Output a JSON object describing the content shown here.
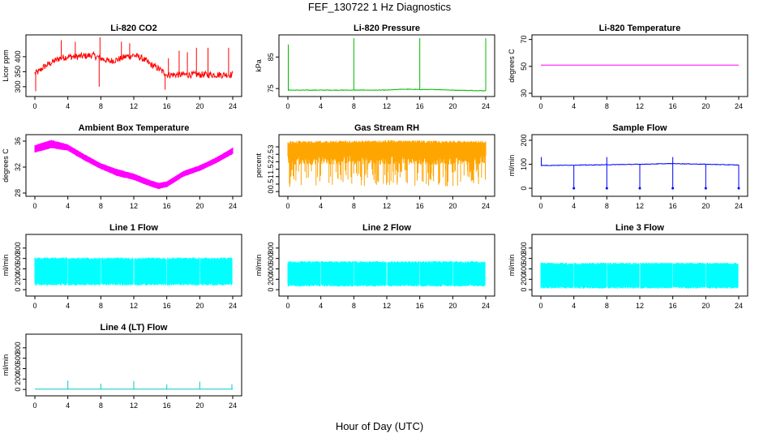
{
  "figure": {
    "title": "FEF_130722  1 Hz Diagnostics",
    "xlabel": "Hour of Day (UTC)"
  },
  "chart_data": [
    {
      "type": "line",
      "title": "Li-820 CO2",
      "ylabel": "Licor ppm",
      "color": "#ff0000",
      "xticks": [
        0,
        4,
        8,
        12,
        16,
        20,
        24
      ],
      "xlim": [
        0,
        24
      ],
      "yticks": [
        300,
        350,
        400
      ],
      "ylim": [
        278,
        462
      ],
      "series": [
        {
          "x": [
            0,
            0.5,
            1,
            2,
            3,
            4,
            5,
            6,
            7,
            8,
            9,
            10,
            11,
            12,
            13,
            14,
            15,
            16,
            17,
            18,
            20,
            22,
            24
          ],
          "y": [
            345,
            350,
            365,
            380,
            395,
            400,
            400,
            402,
            405,
            395,
            385,
            390,
            400,
            405,
            395,
            375,
            360,
            340,
            340,
            340,
            340,
            340,
            340
          ]
        }
      ],
      "spikes": [
        {
          "x": 0.1,
          "y": 285
        },
        {
          "x": 3.2,
          "y": 455
        },
        {
          "x": 4.9,
          "y": 450
        },
        {
          "x": 7.8,
          "y": 300
        },
        {
          "x": 7.9,
          "y": 465
        },
        {
          "x": 10.5,
          "y": 450
        },
        {
          "x": 11.5,
          "y": 445
        },
        {
          "x": 15.8,
          "y": 290
        },
        {
          "x": 16.2,
          "y": 395
        },
        {
          "x": 17.5,
          "y": 420
        },
        {
          "x": 18.5,
          "y": 415
        },
        {
          "x": 19.6,
          "y": 430
        },
        {
          "x": 21,
          "y": 430
        },
        {
          "x": 23.5,
          "y": 430
        }
      ]
    },
    {
      "type": "line",
      "title": "Li-820 Pressure",
      "ylabel": "kPa",
      "color": "#00bb00",
      "xticks": [
        0,
        4,
        8,
        12,
        16,
        20,
        24
      ],
      "xlim": [
        0,
        24
      ],
      "yticks": [
        75,
        85
      ],
      "ylim": [
        73.5,
        91
      ],
      "series": [
        {
          "x": [
            0,
            4,
            8,
            12,
            14,
            16,
            18,
            20,
            22,
            24
          ],
          "y": [
            74.5,
            74.5,
            74.5,
            74.5,
            74.8,
            74.7,
            74.7,
            74.5,
            74.4,
            74.3
          ]
        }
      ],
      "spikes": [
        {
          "x": 0.05,
          "y": 89
        },
        {
          "x": 8,
          "y": 91
        },
        {
          "x": 16,
          "y": 91
        },
        {
          "x": 24,
          "y": 91
        }
      ]
    },
    {
      "type": "line",
      "title": "Li-820 Temperature",
      "ylabel": "degrees C",
      "color": "#ff00ff",
      "xticks": [
        0,
        4,
        8,
        12,
        16,
        20,
        24
      ],
      "xlim": [
        0,
        24
      ],
      "yticks": [
        30,
        50,
        70
      ],
      "ylim": [
        30,
        71
      ],
      "series": [
        {
          "x": [
            0,
            24
          ],
          "y": [
            51,
            51
          ]
        }
      ]
    },
    {
      "type": "area",
      "title": "Ambient Box Temperature",
      "ylabel": "degrees C",
      "color": "#ff00ff",
      "xticks": [
        0,
        4,
        8,
        12,
        16,
        20,
        24
      ],
      "xlim": [
        0,
        24
      ],
      "yticks": [
        28,
        32,
        36
      ],
      "ylim": [
        28,
        36.5
      ],
      "upper": [
        {
          "x": 0,
          "y": 35.4
        },
        {
          "x": 2,
          "y": 36.2
        },
        {
          "x": 4,
          "y": 35.5
        },
        {
          "x": 6,
          "y": 34
        },
        {
          "x": 8,
          "y": 32.6
        },
        {
          "x": 10,
          "y": 31.7
        },
        {
          "x": 12,
          "y": 31
        },
        {
          "x": 14,
          "y": 30
        },
        {
          "x": 15,
          "y": 29.6
        },
        {
          "x": 16,
          "y": 29.8
        },
        {
          "x": 18,
          "y": 31.4
        },
        {
          "x": 20,
          "y": 32.3
        },
        {
          "x": 22,
          "y": 33.5
        },
        {
          "x": 24,
          "y": 35
        }
      ],
      "lower": [
        {
          "x": 0,
          "y": 34.2
        },
        {
          "x": 2,
          "y": 34.9
        },
        {
          "x": 4,
          "y": 34.5
        },
        {
          "x": 6,
          "y": 33
        },
        {
          "x": 8,
          "y": 31.7
        },
        {
          "x": 10,
          "y": 30.6
        },
        {
          "x": 12,
          "y": 30
        },
        {
          "x": 14,
          "y": 29
        },
        {
          "x": 15,
          "y": 28.6
        },
        {
          "x": 16,
          "y": 28.9
        },
        {
          "x": 18,
          "y": 30.5
        },
        {
          "x": 20,
          "y": 31.4
        },
        {
          "x": 22,
          "y": 32.6
        },
        {
          "x": 24,
          "y": 34
        }
      ]
    },
    {
      "type": "area",
      "title": "Gas Stream RH",
      "ylabel": "percent",
      "color": "#ffa500",
      "xticks": [
        0,
        4,
        8,
        12,
        16,
        20,
        24
      ],
      "xlim": [
        0,
        24
      ],
      "yticks": [
        0,
        0.5,
        1,
        1.5,
        2,
        2.5,
        3
      ],
      "ylim": [
        -0.1,
        3.6
      ],
      "upper": [
        {
          "x": 0,
          "y": 3.4
        },
        {
          "x": 12,
          "y": 3.45
        },
        {
          "x": 24,
          "y": 3.4
        }
      ],
      "lower": [
        {
          "x": 0,
          "y": 0.3
        },
        {
          "x": 24,
          "y": 0.3
        }
      ],
      "band_lower_typical": 2.4
    },
    {
      "type": "line",
      "title": "Sample Flow",
      "ylabel": "ml/min",
      "color": "#0000ff",
      "xticks": [
        0,
        4,
        8,
        12,
        16,
        20,
        24
      ],
      "xlim": [
        0,
        24
      ],
      "yticks": [
        0,
        100,
        200
      ],
      "ylim": [
        -20,
        210
      ],
      "series": [
        {
          "x": [
            0,
            6,
            12,
            16,
            20,
            24
          ],
          "y": [
            95,
            97,
            100,
            103,
            100,
            97
          ]
        }
      ],
      "dips": [
        {
          "x": 4,
          "y": 0
        },
        {
          "x": 8,
          "y": 0
        },
        {
          "x": 12,
          "y": 0
        },
        {
          "x": 16,
          "y": 0
        },
        {
          "x": 20,
          "y": 0
        },
        {
          "x": 24,
          "y": 0
        }
      ],
      "spikes": [
        {
          "x": 0.05,
          "y": 130
        },
        {
          "x": 8,
          "y": 130
        },
        {
          "x": 16,
          "y": 130
        }
      ]
    },
    {
      "type": "area",
      "title": "Line 1 Flow",
      "ylabel": "ml/min",
      "color": "#00ffff",
      "xticks": [
        0,
        4,
        8,
        12,
        16,
        20,
        24
      ],
      "xlim": [
        0,
        24
      ],
      "yticks": [
        0,
        200,
        400,
        600,
        800
      ],
      "ylim": [
        -60,
        1000
      ],
      "upper": [
        {
          "x": 0,
          "y": 620
        },
        {
          "x": 24,
          "y": 620
        }
      ],
      "lower": [
        {
          "x": 0,
          "y": 80
        },
        {
          "x": 24,
          "y": 80
        }
      ],
      "gaps_at": [
        4,
        8,
        12,
        16,
        20,
        24
      ]
    },
    {
      "type": "area",
      "title": "Line 2 Flow",
      "ylabel": "ml/min",
      "color": "#00ffff",
      "xticks": [
        0,
        4,
        8,
        12,
        16,
        20,
        24
      ],
      "xlim": [
        0,
        24
      ],
      "yticks": [
        0,
        200,
        400,
        600,
        800
      ],
      "ylim": [
        -60,
        1000
      ],
      "upper": [
        {
          "x": 0,
          "y": 550
        },
        {
          "x": 24,
          "y": 550
        }
      ],
      "lower": [
        {
          "x": 0,
          "y": 60
        },
        {
          "x": 24,
          "y": 60
        }
      ],
      "gaps_at": [
        4,
        8,
        12,
        16,
        20,
        24
      ]
    },
    {
      "type": "area",
      "title": "Line 3 Flow",
      "ylabel": "ml/min",
      "color": "#00ffff",
      "xticks": [
        0,
        4,
        8,
        12,
        16,
        20,
        24
      ],
      "xlim": [
        0,
        24
      ],
      "yticks": [
        0,
        200,
        400,
        600,
        800
      ],
      "ylim": [
        -60,
        1000
      ],
      "upper": [
        {
          "x": 0,
          "y": 520
        },
        {
          "x": 24,
          "y": 520
        }
      ],
      "lower": [
        {
          "x": 0,
          "y": 20
        },
        {
          "x": 24,
          "y": 20
        }
      ],
      "gaps_at": [
        4,
        8,
        12,
        16,
        20,
        24
      ]
    },
    {
      "type": "line",
      "title": "Line 4 (LT) Flow",
      "ylabel": "ml/min",
      "color": "#00cccc",
      "xticks": [
        0,
        4,
        8,
        12,
        16,
        20,
        24
      ],
      "xlim": [
        0,
        24
      ],
      "yticks": [
        0,
        200,
        400,
        600,
        800
      ],
      "ylim": [
        -60,
        1000
      ],
      "series": [
        {
          "x": [
            0,
            24
          ],
          "y": [
            5,
            5
          ]
        }
      ],
      "spikes": [
        {
          "x": 4,
          "y": 170
        },
        {
          "x": 8,
          "y": 110
        },
        {
          "x": 12,
          "y": 160
        },
        {
          "x": 16,
          "y": 100
        },
        {
          "x": 20,
          "y": 150
        },
        {
          "x": 23.9,
          "y": 100
        }
      ]
    }
  ]
}
